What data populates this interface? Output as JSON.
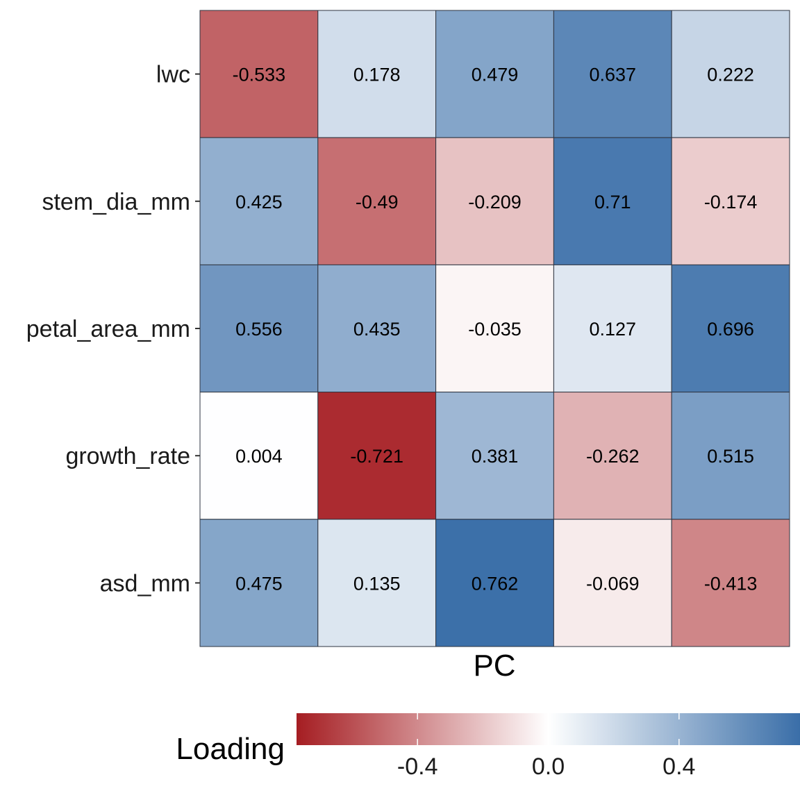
{
  "chart_data": {
    "type": "heatmap",
    "xlabel": "PC",
    "rows": [
      "lwc",
      "stem_dia_mm",
      "petal_area_mm",
      "growth_rate",
      "asd_mm"
    ],
    "columns": [
      "",
      "",
      "",
      "",
      ""
    ],
    "values": [
      [
        -0.533,
        0.178,
        0.479,
        0.637,
        0.222
      ],
      [
        0.425,
        -0.49,
        -0.209,
        0.71,
        -0.174
      ],
      [
        0.556,
        0.435,
        -0.035,
        0.127,
        0.696
      ],
      [
        0.004,
        -0.721,
        0.381,
        -0.262,
        0.515
      ],
      [
        0.475,
        0.135,
        0.762,
        -0.069,
        -0.413
      ]
    ],
    "labels": [
      [
        "-0.533",
        "0.178",
        "0.479",
        "0.637",
        "0.222"
      ],
      [
        "0.425",
        "-0.49",
        "-0.209",
        "0.71",
        "-0.174"
      ],
      [
        "0.556",
        "0.435",
        "-0.035",
        "0.127",
        "0.696"
      ],
      [
        "0.004",
        "-0.721",
        "0.381",
        "-0.262",
        "0.515"
      ],
      [
        "0.475",
        "0.135",
        "0.762",
        "-0.069",
        "-0.413"
      ]
    ],
    "color_scale": {
      "title": "Loading",
      "low_color": "#a51d22",
      "mid_color": "#ffffff",
      "high_color": "#3a6ea8",
      "range": [
        -0.77,
        0.77
      ],
      "ticks": [
        -0.4,
        0.0,
        0.4
      ],
      "tick_labels": [
        "-0.4",
        "0.0",
        "0.4"
      ]
    },
    "legend_position": "bottom"
  }
}
